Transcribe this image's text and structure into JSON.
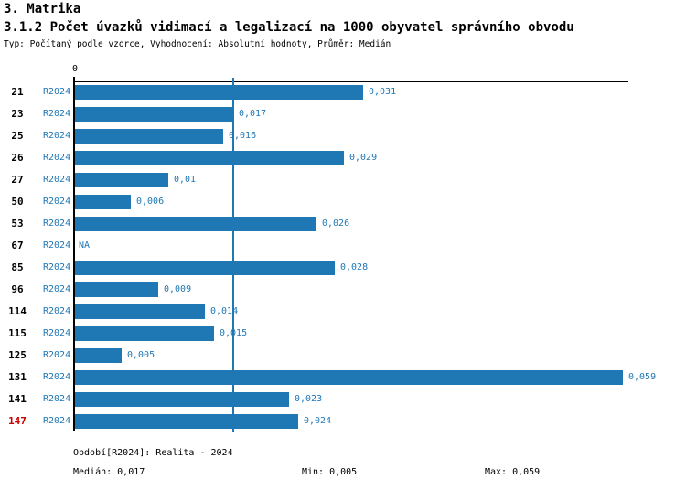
{
  "header": {
    "title": "3. Matrika",
    "subtitle": "3.1.2 Počet úvazků vidimací a legalizací na 1000 obyvatel správního obvodu",
    "meta": "Typ: Počítaný podle vzorce, Vyhodnocení: Absolutní hodnoty, Průměr: Medián"
  },
  "chart_data": {
    "type": "bar",
    "orientation": "horizontal",
    "title": "3.1.2 Počet úvazků vidimací a legalizací na 1000 obyvatel správního obvodu",
    "xlabel": "",
    "ylabel": "",
    "axis_zero_label": "0",
    "xlim": [
      0,
      0.0595
    ],
    "grid": false,
    "categories": [
      "21",
      "23",
      "25",
      "26",
      "27",
      "50",
      "53",
      "67",
      "85",
      "96",
      "114",
      "115",
      "125",
      "131",
      "141",
      "147"
    ],
    "series_label": "R2024",
    "values": [
      0.031,
      0.017,
      0.016,
      0.029,
      0.01,
      0.006,
      0.026,
      null,
      0.028,
      0.009,
      0.014,
      0.015,
      0.005,
      0.059,
      0.023,
      0.024
    ],
    "value_labels": [
      "0,031",
      "0,017",
      "0,016",
      "0,029",
      "0,01",
      "0,006",
      "0,026",
      "NA",
      "0,028",
      "0,009",
      "0,014",
      "0,015",
      "0,005",
      "0,059",
      "0,023",
      "0,024"
    ],
    "highlighted_category": "147",
    "median_line_value": 0.017,
    "bar_color": "#1f77b4",
    "label_color": "#1f77b4",
    "highlight_color": "#cc0000"
  },
  "footer": {
    "period": "Období[R2024]: Realita - 2024",
    "median": "Medián: 0,017",
    "min": "Min: 0,005",
    "max": "Max: 0,059"
  }
}
